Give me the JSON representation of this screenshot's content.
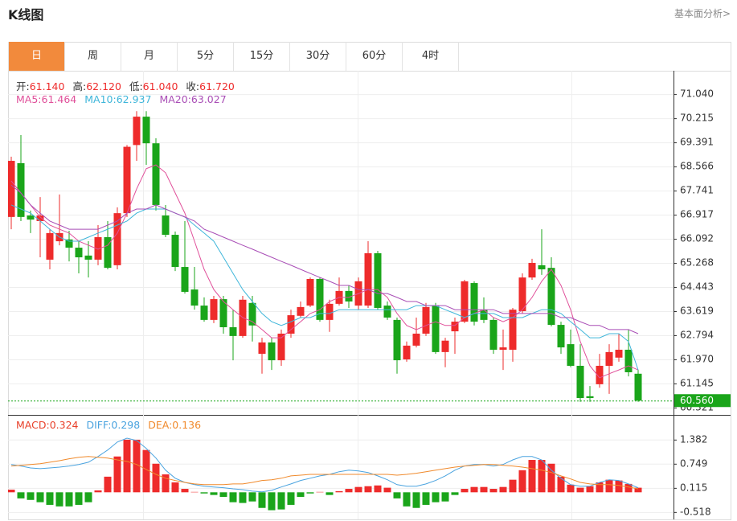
{
  "header": {
    "title": "K线图",
    "link": "基本面分析>"
  },
  "tabs": [
    "日",
    "周",
    "月",
    "5分",
    "15分",
    "30分",
    "60分",
    "4时"
  ],
  "active_tab": 0,
  "chart_data": [
    {
      "type": "candlestick",
      "info": [
        {
          "label": "开:",
          "value": "61.140"
        },
        {
          "label": "高:",
          "value": "62.120"
        },
        {
          "label": "低:",
          "value": "61.040"
        },
        {
          "label": "收:",
          "value": "61.720"
        }
      ],
      "up_color": "#ee2b2b",
      "down_color": "#1aa51a",
      "open": [
        66.84,
        68.68,
        66.89,
        66.7,
        65.38,
        66.01,
        66.07,
        65.79,
        65.52,
        65.38,
        66.15,
        65.19,
        66.97,
        69.3,
        70.27,
        69.36,
        66.89,
        66.23,
        65.13,
        64.36,
        63.81,
        63.32,
        64.03,
        63.07,
        62.77,
        63.9,
        62.16,
        62.55,
        61.94,
        62.85,
        63.46,
        63.81,
        64.72,
        63.32,
        63.87,
        64.31,
        63.81,
        63.81,
        65.6,
        63.81,
        63.32,
        61.97,
        62.44,
        62.85,
        63.81,
        62.22,
        62.93,
        63.26,
        64.58,
        63.67,
        63.32,
        62.3,
        62.3,
        63.62,
        64.77,
        65.19,
        65.1,
        63.15,
        62.49,
        61.75,
        60.71,
        61.12,
        61.75,
        62.03,
        62.3,
        61.48
      ],
      "high": [
        68.9,
        69.64,
        67.06,
        67.52,
        66.42,
        67.61,
        66.37,
        66.01,
        66.01,
        66.56,
        66.7,
        67.17,
        69.3,
        70.46,
        70.46,
        69.53,
        67.25,
        66.34,
        66.7,
        65.13,
        64.09,
        64.14,
        64.14,
        63.67,
        64.14,
        64.14,
        62.71,
        62.71,
        62.99,
        63.67,
        63.95,
        64.77,
        64.77,
        64.01,
        64.77,
        64.5,
        64.77,
        66.01,
        65.68,
        63.95,
        63.4,
        62.58,
        63.4,
        63.9,
        63.9,
        62.71,
        63.4,
        64.69,
        64.64,
        64.09,
        63.4,
        62.99,
        63.73,
        64.91,
        65.41,
        66.42,
        65.46,
        63.26,
        62.99,
        62.49,
        61.06,
        62.16,
        62.49,
        62.85,
        62.99,
        61.61
      ],
      "low": [
        66.42,
        66.7,
        66.29,
        65.46,
        65.05,
        65.87,
        65.32,
        64.91,
        64.77,
        65.19,
        65.05,
        65.05,
        66.84,
        68.76,
        68.62,
        67.06,
        66.15,
        64.99,
        64.22,
        63.67,
        63.26,
        63.21,
        62.85,
        61.94,
        62.71,
        62.58,
        61.48,
        61.61,
        61.75,
        62.71,
        63.4,
        63.76,
        63.26,
        62.91,
        63.81,
        63.73,
        63.67,
        63.73,
        63.67,
        63.32,
        61.48,
        61.89,
        62.38,
        62.77,
        62.16,
        61.7,
        62.16,
        63.21,
        63.13,
        63.21,
        62.16,
        61.61,
        61.89,
        63.54,
        64.69,
        64.86,
        63.1,
        62.16,
        61.7,
        60.52,
        60.52,
        61.0,
        60.79,
        61.89,
        61.39,
        60.52
      ],
      "close": [
        68.76,
        66.84,
        66.75,
        66.89,
        66.29,
        66.29,
        65.79,
        65.46,
        65.38,
        66.15,
        65.1,
        66.97,
        69.24,
        70.27,
        69.36,
        67.25,
        66.23,
        65.13,
        64.28,
        63.81,
        63.32,
        64.03,
        63.07,
        62.77,
        64.01,
        63.13,
        62.55,
        61.94,
        62.85,
        63.48,
        63.76,
        64.72,
        63.32,
        63.87,
        64.31,
        63.95,
        64.64,
        65.6,
        63.73,
        63.4,
        61.94,
        62.44,
        62.85,
        63.76,
        62.22,
        62.61,
        63.26,
        64.64,
        63.26,
        63.32,
        62.3,
        62.38,
        63.67,
        64.77,
        65.27,
        65.05,
        63.15,
        62.38,
        61.75,
        60.65,
        60.65,
        61.75,
        62.22,
        62.3,
        61.53,
        60.56
      ],
      "series": [
        {
          "name": "MA5:",
          "value_now": "61.464",
          "color": "#e0509a",
          "values": [
            68.07,
            67.66,
            67.25,
            66.84,
            66.56,
            66.42,
            66.29,
            66.01,
            65.87,
            65.74,
            65.87,
            66.29,
            66.97,
            67.8,
            68.49,
            68.62,
            68.35,
            67.66,
            66.97,
            66.01,
            65.05,
            64.36,
            63.95,
            63.67,
            63.4,
            63.26,
            62.99,
            62.71,
            62.71,
            62.99,
            63.26,
            63.54,
            63.67,
            63.95,
            64.09,
            64.09,
            64.22,
            64.36,
            64.36,
            64.09,
            63.54,
            63.13,
            62.99,
            63.13,
            63.26,
            63.13,
            63.13,
            63.4,
            63.54,
            63.67,
            63.4,
            63.26,
            63.4,
            63.67,
            64.09,
            64.64,
            65.05,
            64.5,
            63.67,
            62.58,
            61.75,
            61.34,
            61.48,
            61.61,
            61.75,
            61.61
          ]
        },
        {
          "name": "MA10:",
          "value_now": "62.937",
          "color": "#3fb6da",
          "values": [
            67.25,
            67.11,
            66.97,
            66.7,
            66.42,
            66.15,
            66.01,
            66.01,
            66.15,
            66.29,
            66.42,
            66.56,
            66.7,
            66.97,
            67.11,
            67.11,
            67.11,
            66.97,
            66.84,
            66.56,
            66.29,
            66.01,
            65.46,
            64.91,
            64.36,
            63.95,
            63.54,
            63.26,
            63.13,
            63.26,
            63.4,
            63.4,
            63.54,
            63.54,
            63.67,
            63.67,
            63.67,
            63.67,
            63.67,
            63.67,
            63.67,
            63.67,
            63.81,
            63.81,
            63.81,
            63.67,
            63.54,
            63.4,
            63.54,
            63.54,
            63.54,
            63.4,
            63.4,
            63.4,
            63.54,
            63.67,
            63.67,
            63.54,
            63.26,
            62.99,
            62.71,
            62.71,
            62.85,
            62.85,
            62.58,
            61.61
          ]
        },
        {
          "name": "MA20:",
          "value_now": "63.027",
          "color": "#a94eb6",
          "values": [
            67.93,
            67.66,
            67.25,
            66.97,
            66.7,
            66.56,
            66.42,
            66.42,
            66.42,
            66.42,
            66.56,
            66.7,
            66.97,
            67.11,
            67.11,
            67.25,
            67.11,
            66.97,
            66.84,
            66.7,
            66.42,
            66.29,
            66.15,
            66.01,
            65.87,
            65.74,
            65.6,
            65.46,
            65.32,
            65.19,
            65.05,
            64.91,
            64.77,
            64.64,
            64.5,
            64.5,
            64.36,
            64.36,
            64.22,
            64.22,
            64.09,
            63.95,
            63.95,
            63.81,
            63.81,
            63.81,
            63.67,
            63.67,
            63.67,
            63.67,
            63.67,
            63.54,
            63.54,
            63.54,
            63.54,
            63.54,
            63.54,
            63.4,
            63.4,
            63.26,
            63.13,
            63.13,
            62.99,
            62.99,
            62.99,
            62.85
          ]
        }
      ],
      "ylim": [
        60.1,
        71.84
      ],
      "yticks": [
        {
          "value": 71.04,
          "label": "71.040"
        },
        70.215,
        69.391,
        68.566,
        67.741,
        66.917,
        66.092,
        65.268,
        64.443,
        63.619,
        62.794,
        {
          "value": 61.97,
          "label": "61.970"
        },
        61.145,
        60.321
      ],
      "grid": true,
      "last_price": {
        "value": 60.56,
        "label": "60.560"
      }
    },
    {
      "type": "macd",
      "up_color": "#ee2b2b",
      "down_color": "#1aa51a",
      "series": [
        {
          "name": "MACD:",
          "value_now": "0.324",
          "kind": "bar",
          "color": "#e8402a",
          "values": [
            0.07,
            -0.16,
            -0.2,
            -0.26,
            -0.33,
            -0.37,
            -0.37,
            -0.33,
            -0.26,
            0.05,
            0.41,
            0.94,
            1.38,
            1.38,
            1.11,
            0.75,
            0.47,
            0.26,
            0.09,
            0.01,
            -0.03,
            -0.07,
            -0.12,
            -0.26,
            -0.28,
            -0.24,
            -0.41,
            -0.47,
            -0.45,
            -0.33,
            -0.12,
            -0.03,
            0.01,
            -0.07,
            0.03,
            0.09,
            0.14,
            0.16,
            0.18,
            0.12,
            -0.16,
            -0.37,
            -0.41,
            -0.33,
            -0.26,
            -0.24,
            -0.07,
            0.09,
            0.14,
            0.14,
            0.09,
            0.14,
            0.33,
            0.58,
            0.85,
            0.85,
            0.75,
            0.41,
            0.2,
            0.12,
            0.16,
            0.26,
            0.33,
            0.31,
            0.22,
            0.12
          ]
        },
        {
          "name": "DIFF:",
          "value_now": "0.298",
          "kind": "line",
          "color": "#4aa3df",
          "values": [
            0.73,
            0.69,
            0.64,
            0.62,
            0.64,
            0.66,
            0.69,
            0.73,
            0.79,
            0.94,
            1.11,
            1.32,
            1.42,
            1.36,
            1.15,
            0.9,
            0.58,
            0.37,
            0.26,
            0.2,
            0.16,
            0.14,
            0.12,
            0.09,
            0.07,
            0.03,
            0.01,
            0.05,
            0.14,
            0.22,
            0.31,
            0.37,
            0.43,
            0.47,
            0.54,
            0.58,
            0.56,
            0.52,
            0.43,
            0.33,
            0.2,
            0.16,
            0.16,
            0.22,
            0.31,
            0.43,
            0.58,
            0.69,
            0.73,
            0.73,
            0.69,
            0.73,
            0.85,
            0.94,
            0.94,
            0.85,
            0.58,
            0.37,
            0.2,
            0.16,
            0.16,
            0.26,
            0.33,
            0.31,
            0.22,
            0.12
          ]
        },
        {
          "name": "DEA:",
          "value_now": "0.136",
          "kind": "line",
          "color": "#f08a2c",
          "values": [
            0.69,
            0.71,
            0.73,
            0.75,
            0.79,
            0.83,
            0.88,
            0.92,
            0.94,
            0.92,
            0.9,
            0.85,
            0.81,
            0.73,
            0.6,
            0.47,
            0.37,
            0.31,
            0.26,
            0.22,
            0.2,
            0.2,
            0.2,
            0.22,
            0.22,
            0.26,
            0.31,
            0.33,
            0.37,
            0.43,
            0.45,
            0.47,
            0.47,
            0.47,
            0.47,
            0.47,
            0.47,
            0.47,
            0.47,
            0.47,
            0.45,
            0.47,
            0.5,
            0.54,
            0.58,
            0.62,
            0.66,
            0.69,
            0.71,
            0.73,
            0.73,
            0.71,
            0.69,
            0.66,
            0.62,
            0.58,
            0.52,
            0.43,
            0.35,
            0.26,
            0.22,
            0.2,
            0.2,
            0.18,
            0.14,
            0.09
          ]
        }
      ],
      "ylim": [
        -0.69,
        1.99
      ],
      "yticks": [
        1.382,
        0.749,
        0.115,
        -0.518
      ],
      "grid": true
    }
  ]
}
